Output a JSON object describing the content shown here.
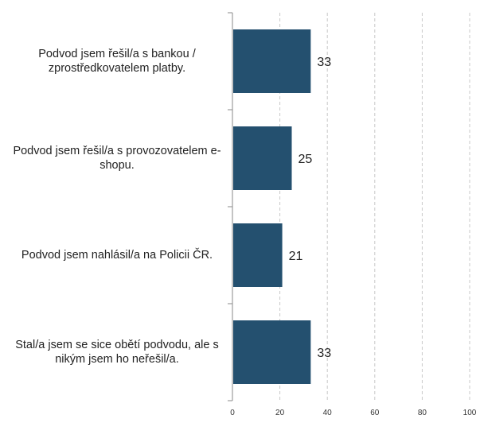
{
  "chart_data": {
    "type": "bar",
    "orientation": "horizontal",
    "categories": [
      "Podvod jsem řešil/a s bankou / zprostředkovatelem platby.",
      "Podvod jsem řešil/a s provozovatelem e-shopu.",
      "Podvod jsem nahlásil/a na Policii ČR.",
      "Stal/a jsem se sice obětí podvodu, ale s nikým jsem ho neřešil/a."
    ],
    "values": [
      33,
      25,
      21,
      33
    ],
    "value_labels": [
      "33",
      "25",
      "21",
      "33"
    ],
    "x_ticks": [
      "0",
      "20",
      "40",
      "60",
      "80",
      "100"
    ],
    "xlim": [
      0,
      100
    ],
    "grid": "vertical dashed",
    "title": "",
    "xlabel": "",
    "ylabel": "",
    "bar_color": "#24506f"
  }
}
